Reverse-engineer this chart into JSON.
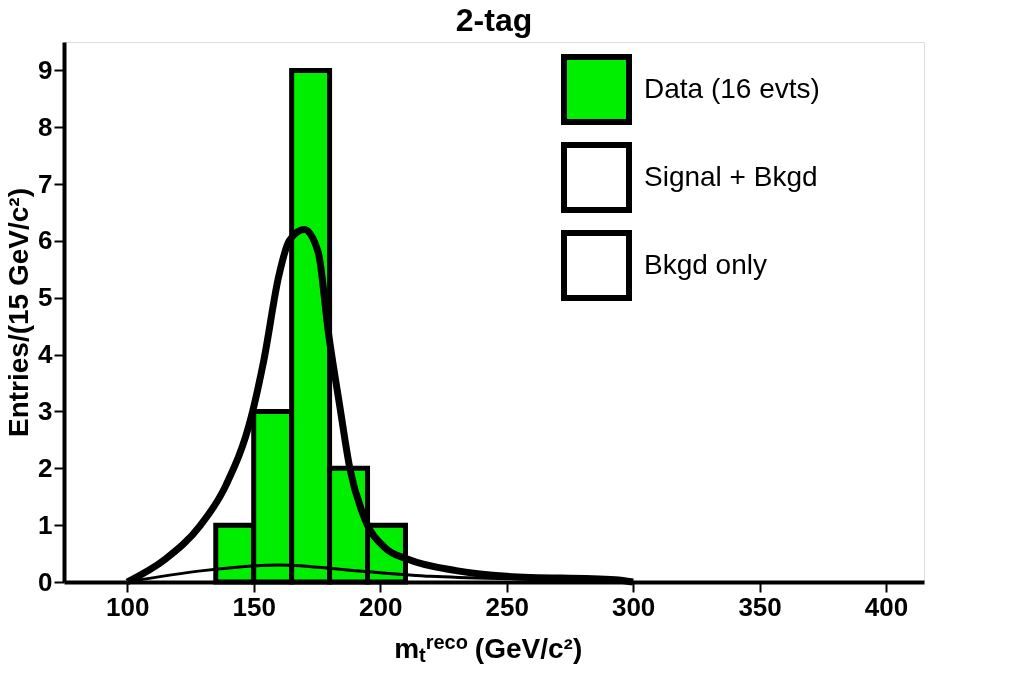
{
  "chart_data": {
    "type": "histogram",
    "title": "2-tag",
    "xlabel": "m$_{t}$$^{reco}$ (GeV/c²)",
    "ylabel": "Entries/(15 GeV/c²)",
    "series": [
      {
        "name": "Data (16 evts)",
        "color": "#00ee00",
        "bins": [
          135,
          150,
          165,
          180,
          195,
          210
        ],
        "values": [
          1,
          3,
          9,
          2,
          1
        ]
      },
      {
        "name": "Signal + Bkgd",
        "type": "line",
        "color": "#000000",
        "x": [
          100,
          115,
          129,
          139,
          149,
          154,
          160,
          164,
          170,
          175.5,
          179.5,
          184,
          188,
          194,
          202,
          211,
          230,
          250,
          293,
          300
        ],
        "values": [
          0,
          0.4,
          1.0,
          1.7,
          2.9,
          3.9,
          5.4,
          6.0,
          6.2,
          5.8,
          4.4,
          3.1,
          2.0,
          1.1,
          0.6,
          0.4,
          0.2,
          0.1,
          0.04,
          0
        ]
      },
      {
        "name": "Bkgd only",
        "type": "line",
        "color": "#000000",
        "x": [
          100,
          130,
          160,
          190,
          220,
          260,
          300
        ],
        "values": [
          0,
          0.2,
          0.3,
          0.2,
          0.1,
          0.05,
          0
        ]
      }
    ],
    "xlim": [
      75,
      415
    ],
    "xticks": [
      100,
      150,
      200,
      250,
      300,
      350,
      400
    ],
    "ylim": [
      0,
      9.5
    ],
    "yticks": [
      0,
      1,
      2,
      3,
      4,
      5,
      6,
      7,
      8,
      9
    ],
    "grid": false,
    "legend": "top right"
  }
}
